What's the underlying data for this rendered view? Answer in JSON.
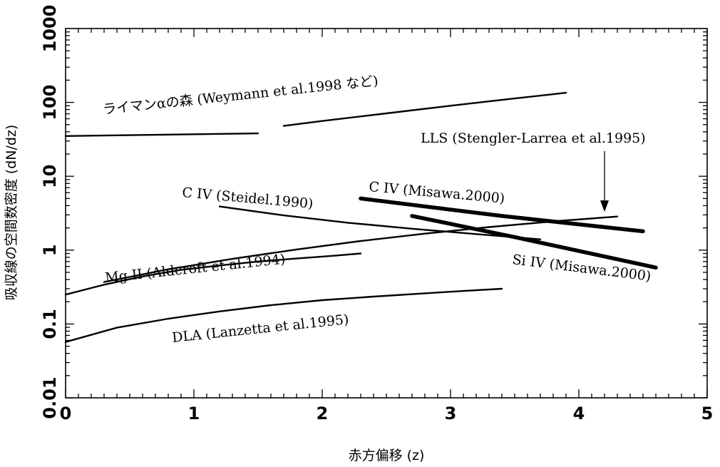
{
  "chart_data": {
    "type": "line",
    "title": "",
    "xlabel": "赤方偏移 (z)",
    "ylabel": "吸収線の空間数密度 (dN/dz)",
    "xlim": [
      0,
      5
    ],
    "ylim": [
      0.01,
      1000
    ],
    "yscale": "log",
    "grid": false,
    "legend": "none",
    "xticks": [
      "0",
      "1",
      "2",
      "3",
      "4",
      "5"
    ],
    "yticks": [
      "0.01",
      "0.1",
      "1",
      "10",
      "100",
      "1000"
    ],
    "series": [
      {
        "name": "ライマンαの森 (Weymann et al.1998 など)",
        "width": "thin",
        "segments": [
          [
            [
              0,
              35
            ],
            [
              0.5,
              36
            ],
            [
              1.0,
              37
            ],
            [
              1.5,
              38
            ]
          ],
          [
            [
              1.7,
              48
            ],
            [
              2.0,
              56
            ],
            [
              2.5,
              71
            ],
            [
              3.0,
              90
            ],
            [
              3.5,
              113
            ],
            [
              3.9,
              135
            ]
          ]
        ]
      },
      {
        "name": "C IV (Steidel.1990)",
        "width": "thin",
        "segments": [
          [
            [
              1.2,
              3.9
            ],
            [
              1.7,
              2.95
            ],
            [
              2.2,
              2.35
            ],
            [
              2.7,
              1.95
            ],
            [
              3.2,
              1.65
            ],
            [
              3.7,
              1.4
            ]
          ]
        ]
      },
      {
        "name": "C IV (Misawa.2000)",
        "width": "thick",
        "segments": [
          [
            [
              2.3,
              5.0
            ],
            [
              3.4,
              2.9
            ],
            [
              4.5,
              1.8
            ]
          ]
        ]
      },
      {
        "name": "Si IV (Misawa.2000)",
        "width": "thick",
        "segments": [
          [
            [
              2.7,
              2.9
            ],
            [
              3.5,
              1.5
            ],
            [
              4.6,
              0.58
            ]
          ]
        ]
      },
      {
        "name": "LLS (Stengler-Larrea et al.1995)",
        "width": "thin",
        "segments": [
          [
            [
              0.3,
              0.37
            ],
            [
              0.8,
              0.55
            ],
            [
              1.3,
              0.76
            ],
            [
              1.8,
              1.02
            ],
            [
              2.3,
              1.33
            ],
            [
              2.8,
              1.67
            ],
            [
              3.3,
              2.05
            ],
            [
              3.8,
              2.45
            ],
            [
              4.3,
              2.85
            ]
          ]
        ]
      },
      {
        "name": "Mg II (Aldcroft et al.1994)",
        "width": "thin",
        "segments": [
          [
            [
              0,
              0.25
            ],
            [
              0.3,
              0.34
            ],
            [
              0.6,
              0.44
            ],
            [
              0.9,
              0.54
            ],
            [
              1.2,
              0.62
            ],
            [
              1.5,
              0.7
            ],
            [
              1.8,
              0.77
            ],
            [
              2.1,
              0.84
            ],
            [
              2.3,
              0.9
            ]
          ]
        ]
      },
      {
        "name": "DLA (Lanzetta et al.1995)",
        "width": "thin",
        "segments": [
          [
            [
              0,
              0.057
            ],
            [
              0.4,
              0.089
            ],
            [
              0.8,
              0.118
            ],
            [
              1.2,
              0.148
            ],
            [
              1.6,
              0.18
            ],
            [
              2.0,
              0.21
            ],
            [
              2.4,
              0.235
            ],
            [
              2.8,
              0.26
            ],
            [
              3.1,
              0.28
            ],
            [
              3.4,
              0.3
            ]
          ]
        ]
      }
    ],
    "annotations": [
      {
        "text": "LLS (Stengler-Larrea et al.1995)",
        "arrow_to": [
          4.2,
          3.3
        ]
      }
    ]
  }
}
